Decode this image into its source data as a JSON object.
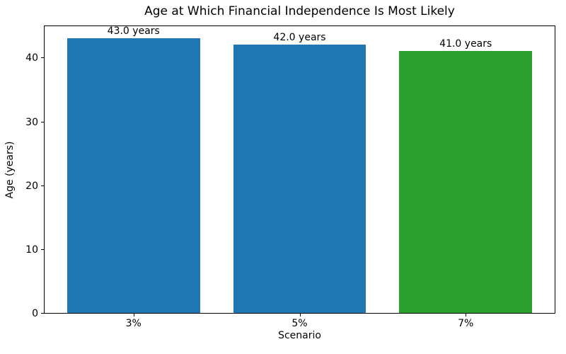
{
  "chart_data": {
    "type": "bar",
    "title": "Age at Which Financial Independence Is Most Likely",
    "xlabel": "Scenario",
    "ylabel": "Age (years)",
    "categories": [
      "3%",
      "5%",
      "7%"
    ],
    "values": [
      43.0,
      42.0,
      41.0
    ],
    "bar_labels": [
      "43.0 years",
      "42.0 years",
      "41.0 years"
    ],
    "bar_colors": [
      "#1f77b4",
      "#1f77b4",
      "#2ca02c"
    ],
    "yticks": [
      0,
      10,
      20,
      30,
      40
    ],
    "ylim": [
      0,
      45.15
    ],
    "bar_width_fraction": 0.8,
    "grid": false,
    "legend": "none",
    "spine_color": "#000000",
    "background_color": "#ffffff"
  }
}
